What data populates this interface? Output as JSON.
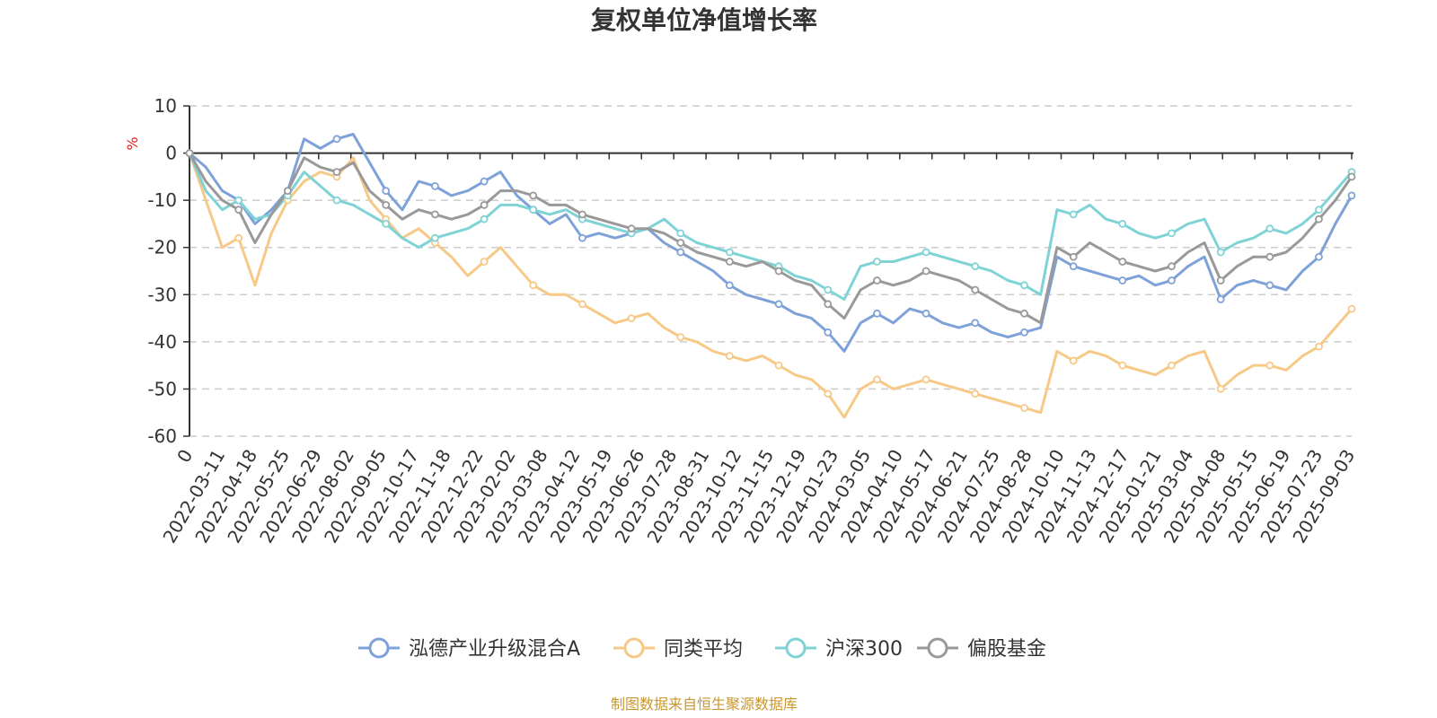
{
  "chart_data": {
    "type": "line",
    "title": "复权单位净值增长率",
    "xlabel": "",
    "ylabel": "%",
    "ylim": [
      -60,
      10
    ],
    "yticks": [
      10,
      0,
      -10,
      -20,
      -30,
      -40,
      -50,
      -60
    ],
    "grid": true,
    "legend_position": "bottom",
    "source": "制图数据来自恒生聚源数据库",
    "x_ticks": [
      "0",
      "2022-03-11",
      "2022-04-18",
      "2022-05-25",
      "2022-06-29",
      "2022-08-02",
      "2022-09-05",
      "2022-10-17",
      "2022-11-18",
      "2022-12-22",
      "2023-02-02",
      "2023-03-08",
      "2023-04-12",
      "2023-05-19",
      "2023-06-26",
      "2023-07-28",
      "2023-08-31",
      "2023-10-12",
      "2023-11-15",
      "2023-12-19",
      "2024-01-23",
      "2024-03-05",
      "2024-04-10",
      "2024-05-17",
      "2024-06-21",
      "2024-07-25",
      "2024-08-28",
      "2024-10-10",
      "2024-11-13",
      "2024-12-17",
      "2025-01-21",
      "2025-03-04",
      "2025-04-08",
      "2025-05-15",
      "2025-06-19",
      "2025-07-23",
      "2025-09-03"
    ],
    "x": [
      "0",
      "2022-03-11",
      "2022-03-25",
      "2022-04-18",
      "2022-04-28",
      "2022-05-25",
      "2022-06-10",
      "2022-06-29",
      "2022-07-15",
      "2022-08-02",
      "2022-08-18",
      "2022-09-05",
      "2022-09-20",
      "2022-10-17",
      "2022-11-01",
      "2022-11-18",
      "2022-12-05",
      "2022-12-22",
      "2023-01-10",
      "2023-02-02",
      "2023-02-20",
      "2023-03-08",
      "2023-03-24",
      "2023-04-12",
      "2023-04-28",
      "2023-05-19",
      "2023-06-05",
      "2023-06-26",
      "2023-07-12",
      "2023-07-28",
      "2023-08-15",
      "2023-08-31",
      "2023-09-20",
      "2023-10-12",
      "2023-10-27",
      "2023-11-15",
      "2023-12-01",
      "2023-12-19",
      "2024-01-05",
      "2024-01-23",
      "2024-02-05",
      "2024-03-05",
      "2024-03-20",
      "2024-04-10",
      "2024-04-26",
      "2024-05-17",
      "2024-06-04",
      "2024-06-21",
      "2024-07-08",
      "2024-07-25",
      "2024-08-12",
      "2024-08-28",
      "2024-09-20",
      "2024-10-10",
      "2024-10-25",
      "2024-11-13",
      "2024-11-29",
      "2024-12-17",
      "2025-01-03",
      "2025-01-21",
      "2025-02-14",
      "2025-03-04",
      "2025-03-20",
      "2025-04-08",
      "2025-04-24",
      "2025-05-15",
      "2025-06-03",
      "2025-06-19",
      "2025-07-07",
      "2025-07-23",
      "2025-08-12",
      "2025-09-03"
    ],
    "series": [
      {
        "name": "泓德产业升级混合A",
        "color": "#7ea1d8",
        "values": [
          0,
          -3,
          -8,
          -10,
          -15,
          -12,
          -8,
          3,
          1,
          3,
          4,
          -2,
          -8,
          -12,
          -6,
          -7,
          -9,
          -8,
          -6,
          -4,
          -9,
          -12,
          -15,
          -13,
          -18,
          -17,
          -18,
          -17,
          -16,
          -19,
          -21,
          -23,
          -25,
          -28,
          -30,
          -31,
          -32,
          -34,
          -35,
          -38,
          -42,
          -36,
          -34,
          -36,
          -33,
          -34,
          -36,
          -37,
          -36,
          -38,
          -39,
          -38,
          -37,
          -22,
          -24,
          -25,
          -26,
          -27,
          -26,
          -28,
          -27,
          -24,
          -22,
          -31,
          -28,
          -27,
          -28,
          -29,
          -25,
          -22,
          -15,
          -9
        ]
      },
      {
        "name": "同类平均",
        "color": "#f7c987",
        "values": [
          0,
          -10,
          -20,
          -18,
          -28,
          -17,
          -10,
          -6,
          -4,
          -5,
          -1,
          -10,
          -14,
          -18,
          -16,
          -19,
          -22,
          -26,
          -23,
          -20,
          -24,
          -28,
          -30,
          -30,
          -32,
          -34,
          -36,
          -35,
          -34,
          -37,
          -39,
          -40,
          -42,
          -43,
          -44,
          -43,
          -45,
          -47,
          -48,
          -51,
          -56,
          -50,
          -48,
          -50,
          -49,
          -48,
          -49,
          -50,
          -51,
          -52,
          -53,
          -54,
          -55,
          -42,
          -44,
          -42,
          -43,
          -45,
          -46,
          -47,
          -45,
          -43,
          -42,
          -50,
          -47,
          -45,
          -45,
          -46,
          -43,
          -41,
          -37,
          -33
        ]
      },
      {
        "name": "沪深300",
        "color": "#7fd3d6",
        "values": [
          0,
          -8,
          -12,
          -10,
          -14,
          -13,
          -9,
          -4,
          -7,
          -10,
          -11,
          -13,
          -15,
          -18,
          -20,
          -18,
          -17,
          -16,
          -14,
          -11,
          -11,
          -12,
          -13,
          -12,
          -14,
          -15,
          -16,
          -17,
          -16,
          -14,
          -17,
          -19,
          -20,
          -21,
          -22,
          -23,
          -24,
          -26,
          -27,
          -29,
          -31,
          -24,
          -23,
          -23,
          -22,
          -21,
          -22,
          -23,
          -24,
          -25,
          -27,
          -28,
          -30,
          -12,
          -13,
          -11,
          -14,
          -15,
          -17,
          -18,
          -17,
          -15,
          -14,
          -21,
          -19,
          -18,
          -16,
          -17,
          -15,
          -12,
          -8,
          -4
        ]
      },
      {
        "name": "偏股基金",
        "color": "#999999",
        "values": [
          0,
          -6,
          -10,
          -12,
          -19,
          -13,
          -8,
          -1,
          -3,
          -4,
          -2,
          -8,
          -11,
          -14,
          -12,
          -13,
          -14,
          -13,
          -11,
          -8,
          -8,
          -9,
          -11,
          -11,
          -13,
          -14,
          -15,
          -16,
          -16,
          -17,
          -19,
          -21,
          -22,
          -23,
          -24,
          -23,
          -25,
          -27,
          -28,
          -32,
          -35,
          -29,
          -27,
          -28,
          -27,
          -25,
          -26,
          -27,
          -29,
          -31,
          -33,
          -34,
          -36,
          -20,
          -22,
          -19,
          -21,
          -23,
          -24,
          -25,
          -24,
          -21,
          -19,
          -27,
          -24,
          -22,
          -22,
          -21,
          -18,
          -14,
          -10,
          -5
        ]
      }
    ]
  }
}
